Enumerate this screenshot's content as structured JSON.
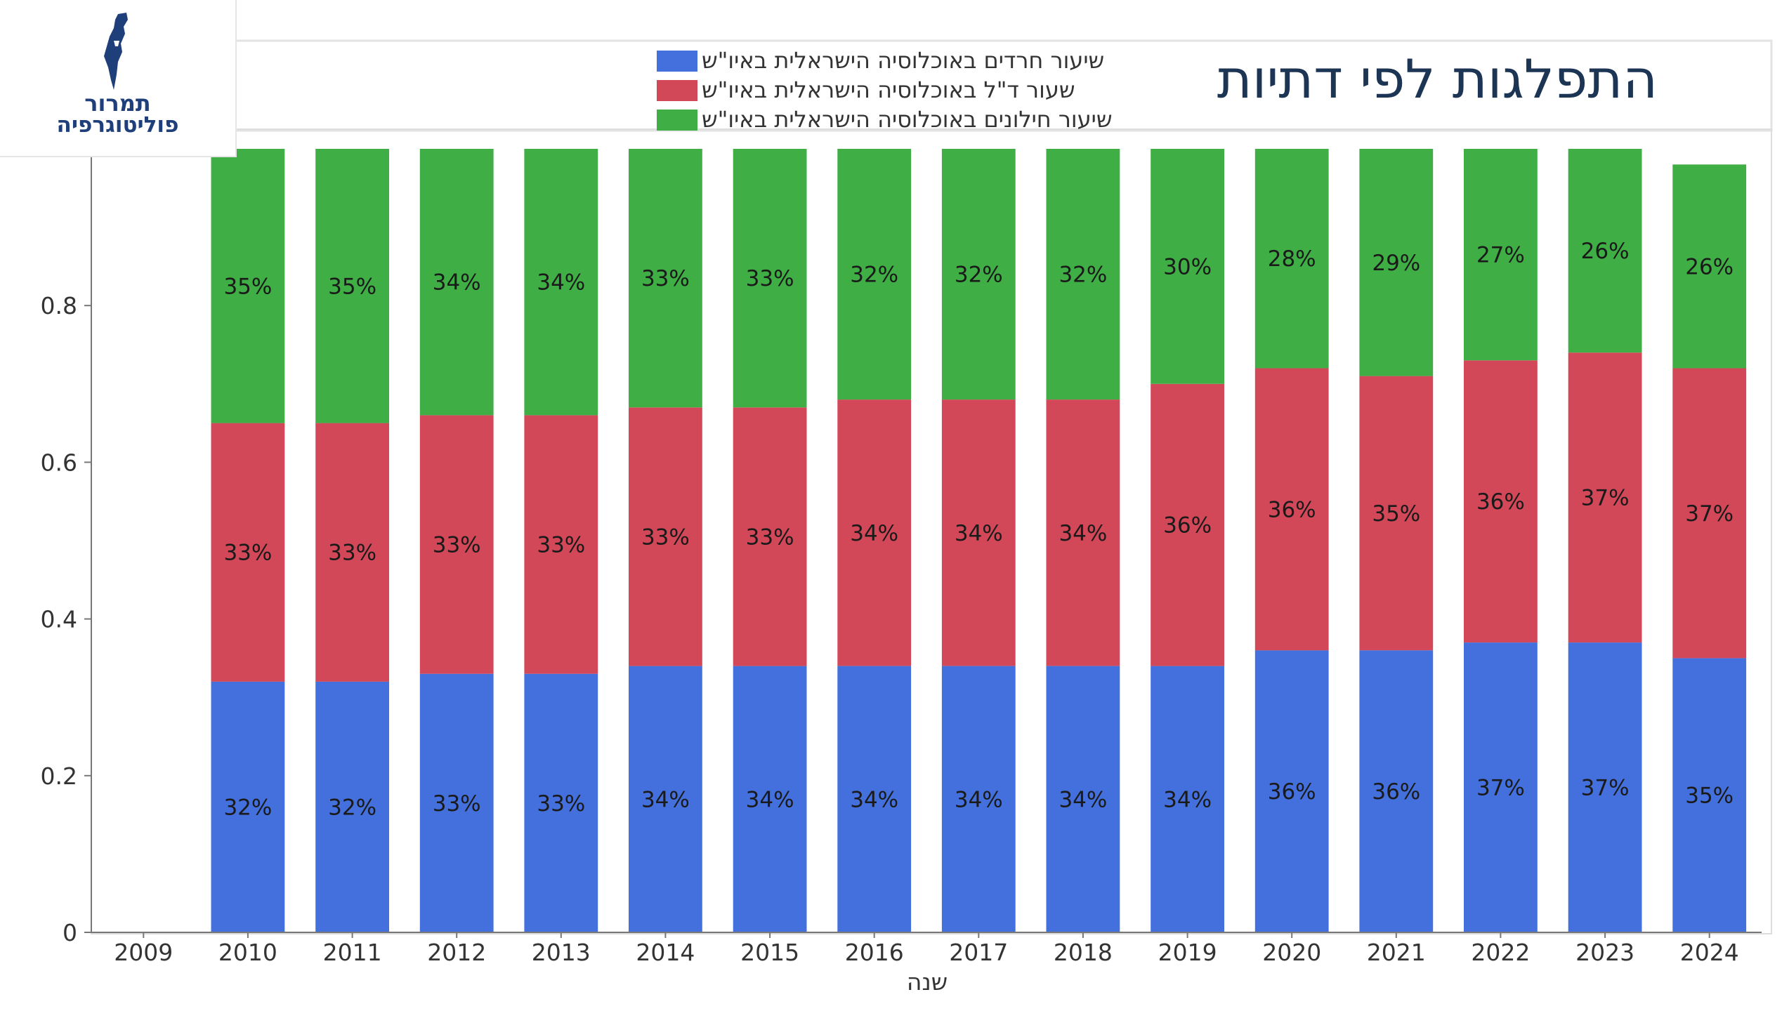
{
  "title": "התפלגות לפי דתיות",
  "logo": {
    "line1": "תמרור",
    "line2": "פוליטוגרפיה",
    "icon": "israel-map-icon"
  },
  "colors": {
    "haredi": "#4470DD",
    "religious": "#D24858",
    "secular": "#3FAE45"
  },
  "chart_data": {
    "type": "bar",
    "stacked": true,
    "xlabel": "שנה",
    "ylabel": "",
    "ylim": [
      0,
      1
    ],
    "yticks": [
      "0",
      "0.2",
      "0.4",
      "0.6",
      "0.8"
    ],
    "grid": false,
    "legend_position": "top",
    "categories": [
      "2009",
      "2010",
      "2011",
      "2012",
      "2013",
      "2014",
      "2015",
      "2016",
      "2017",
      "2018",
      "2019",
      "2020",
      "2021",
      "2022",
      "2023",
      "2024"
    ],
    "series": [
      {
        "name": "שיעור חרדים באוכלוסיה הישראלית באיו\"ש",
        "color": "#4470DD",
        "values": [
          null,
          0.32,
          0.32,
          0.33,
          0.33,
          0.34,
          0.34,
          0.34,
          0.34,
          0.34,
          0.34,
          0.36,
          0.36,
          0.37,
          0.37,
          0.35
        ],
        "labels": [
          "",
          "32%",
          "32%",
          "33%",
          "33%",
          "34%",
          "34%",
          "34%",
          "34%",
          "34%",
          "34%",
          "36%",
          "36%",
          "37%",
          "37%",
          "35%"
        ]
      },
      {
        "name": "שעור ד\"ל באוכלוסיה הישראלית באיו\"ש",
        "color": "#D24858",
        "values": [
          null,
          0.33,
          0.33,
          0.33,
          0.33,
          0.33,
          0.33,
          0.34,
          0.34,
          0.34,
          0.36,
          0.36,
          0.35,
          0.36,
          0.37,
          0.37
        ],
        "labels": [
          "",
          "33%",
          "33%",
          "33%",
          "33%",
          "33%",
          "33%",
          "34%",
          "34%",
          "34%",
          "36%",
          "36%",
          "35%",
          "36%",
          "37%",
          "37%"
        ]
      },
      {
        "name": "שיעור חילונים באוכלוסיה הישראלית באיו\"ש",
        "color": "#3FAE45",
        "values": [
          null,
          0.35,
          0.35,
          0.34,
          0.34,
          0.33,
          0.33,
          0.32,
          0.32,
          0.32,
          0.3,
          0.28,
          0.29,
          0.27,
          0.26,
          0.26
        ],
        "labels": [
          "",
          "35%",
          "35%",
          "34%",
          "34%",
          "33%",
          "33%",
          "32%",
          "32%",
          "32%",
          "30%",
          "28%",
          "29%",
          "27%",
          "26%",
          "26%"
        ]
      }
    ]
  }
}
